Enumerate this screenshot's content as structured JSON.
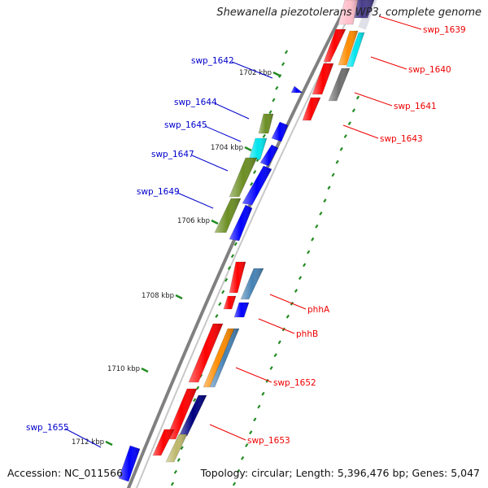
{
  "title": "Shewanella piezotolerans WP3, complete genome",
  "accession": "Accession: NC_011566",
  "topology": "Topology: circular; Length: 5,396,476 bp; Genes: 5,047",
  "colors": {
    "red": "#ff0000",
    "blue": "#0000ff",
    "olive": "#6b8e23",
    "cyan": "#00e5ee",
    "orange": "#ff8c00",
    "steelblue": "#4682b4",
    "gray": "#707070",
    "navy": "#000080",
    "khaki": "#bdb76b",
    "purple": "#483d8b",
    "pink": "#ffc0cb",
    "leader_blue": "#0000cc",
    "leader_red": "#ee0000",
    "tick_green": "#228b22",
    "backbone": "#808080"
  },
  "kbp_labels": [
    "1702 kbp",
    "1704 kbp",
    "1706 kbp",
    "1708 kbp",
    "1710 kbp",
    "1712 kbp"
  ],
  "gene_labels": {
    "left": [
      "swp_1642",
      "swp_1644",
      "swp_1645",
      "swp_1647",
      "swp_1649",
      "swp_1655"
    ],
    "right": [
      "swp_1639",
      "swp_1640",
      "swp_1641",
      "swp_1643",
      "phhA",
      "phhB",
      "swp_1652",
      "swp_1653"
    ]
  }
}
